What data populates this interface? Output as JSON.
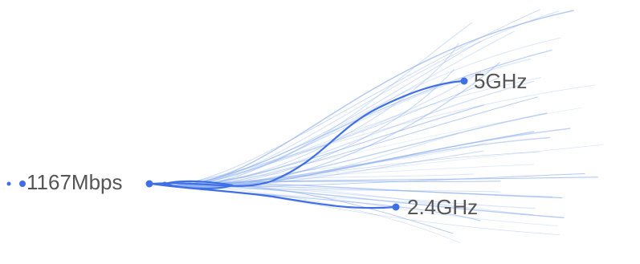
{
  "speed_label": "1167Mbps",
  "band_5ghz_label": "5GHz",
  "band_24ghz_label": "2.4GHz",
  "colors": {
    "accent": "#3f6fe6",
    "fan": "#8fb0ee",
    "text": "#555555",
    "background": "#ffffff"
  }
}
